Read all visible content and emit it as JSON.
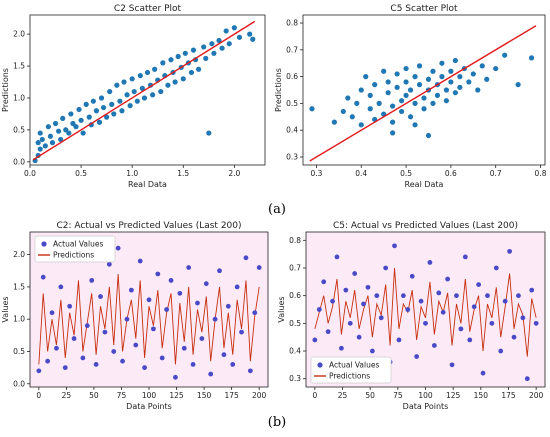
{
  "captions": {
    "a": "(a)",
    "b": "(b)"
  },
  "colors": {
    "point": "#1f77b4",
    "line": "#e41a1c",
    "actual": "#4a4ac8",
    "pred": "#c62e0e",
    "band": "#f6c6e4"
  },
  "chart_data": [
    {
      "type": "scatter",
      "title": "C2 Scatter Plot",
      "xlabel": "Real Data",
      "ylabel": "Predictions",
      "xlim": [
        0.0,
        2.3
      ],
      "ylim": [
        -0.05,
        2.3
      ],
      "xticks": [
        0.0,
        0.5,
        1.0,
        1.5,
        2.0
      ],
      "yticks": [
        0.0,
        0.5,
        1.0,
        1.5,
        2.0
      ],
      "xtick_labels": [
        "0.0",
        "0.5",
        "1.0",
        "1.5",
        "2.0"
      ],
      "ytick_labels": [
        "0.0",
        "0.5",
        "1.0",
        "1.5",
        "2.0"
      ],
      "reference_line": {
        "from": [
          0.03,
          0.03
        ],
        "to": [
          2.2,
          2.2
        ]
      },
      "points": [
        [
          0.05,
          0.02
        ],
        [
          0.08,
          0.1
        ],
        [
          0.08,
          0.3
        ],
        [
          0.1,
          0.2
        ],
        [
          0.12,
          0.35
        ],
        [
          0.1,
          0.45
        ],
        [
          0.15,
          0.25
        ],
        [
          0.18,
          0.55
        ],
        [
          0.2,
          0.4
        ],
        [
          0.22,
          0.3
        ],
        [
          0.25,
          0.6
        ],
        [
          0.28,
          0.48
        ],
        [
          0.3,
          0.35
        ],
        [
          0.32,
          0.68
        ],
        [
          0.35,
          0.5
        ],
        [
          0.38,
          0.45
        ],
        [
          0.4,
          0.75
        ],
        [
          0.42,
          0.6
        ],
        [
          0.45,
          0.55
        ],
        [
          0.48,
          0.82
        ],
        [
          0.5,
          0.65
        ],
        [
          0.52,
          0.45
        ],
        [
          0.55,
          0.9
        ],
        [
          0.58,
          0.7
        ],
        [
          0.6,
          0.58
        ],
        [
          0.62,
          0.95
        ],
        [
          0.65,
          0.8
        ],
        [
          0.68,
          0.62
        ],
        [
          0.7,
          1.0
        ],
        [
          0.72,
          0.85
        ],
        [
          0.75,
          0.7
        ],
        [
          0.78,
          1.1
        ],
        [
          0.8,
          0.9
        ],
        [
          0.82,
          0.75
        ],
        [
          0.85,
          1.2
        ],
        [
          0.88,
          0.95
        ],
        [
          0.9,
          0.8
        ],
        [
          0.92,
          1.25
        ],
        [
          0.95,
          1.05
        ],
        [
          0.98,
          0.88
        ],
        [
          1.0,
          1.3
        ],
        [
          1.02,
          1.1
        ],
        [
          1.05,
          0.95
        ],
        [
          1.08,
          1.35
        ],
        [
          1.1,
          1.15
        ],
        [
          1.12,
          1.0
        ],
        [
          1.15,
          1.4
        ],
        [
          1.18,
          1.2
        ],
        [
          1.2,
          1.05
        ],
        [
          1.22,
          1.45
        ],
        [
          1.25,
          1.28
        ],
        [
          1.28,
          1.1
        ],
        [
          1.3,
          1.55
        ],
        [
          1.32,
          1.35
        ],
        [
          1.35,
          1.2
        ],
        [
          1.38,
          1.6
        ],
        [
          1.4,
          1.4
        ],
        [
          1.42,
          1.25
        ],
        [
          1.45,
          1.65
        ],
        [
          1.48,
          1.48
        ],
        [
          1.5,
          1.3
        ],
        [
          1.52,
          1.7
        ],
        [
          1.55,
          1.55
        ],
        [
          1.58,
          1.4
        ],
        [
          1.6,
          1.75
        ],
        [
          1.62,
          1.6
        ],
        [
          1.65,
          1.45
        ],
        [
          1.7,
          1.8
        ],
        [
          1.72,
          1.62
        ],
        [
          1.75,
          0.45
        ],
        [
          1.78,
          1.85
        ],
        [
          1.8,
          1.7
        ],
        [
          1.85,
          1.9
        ],
        [
          1.88,
          1.78
        ],
        [
          1.92,
          2.05
        ],
        [
          1.95,
          1.85
        ],
        [
          2.0,
          2.1
        ],
        [
          2.05,
          1.95
        ],
        [
          2.15,
          2.0
        ],
        [
          2.18,
          1.92
        ]
      ]
    },
    {
      "type": "scatter",
      "title": "C5 Scatter Plot",
      "xlabel": "Real Data",
      "ylabel": "Predictions",
      "xlim": [
        0.27,
        0.81
      ],
      "ylim": [
        0.27,
        0.83
      ],
      "xticks": [
        0.3,
        0.4,
        0.5,
        0.6,
        0.7,
        0.8
      ],
      "yticks": [
        0.3,
        0.4,
        0.5,
        0.6,
        0.7,
        0.8
      ],
      "xtick_labels": [
        "0.3",
        "0.4",
        "0.5",
        "0.6",
        "0.7",
        "0.8"
      ],
      "ytick_labels": [
        "0.3",
        "0.4",
        "0.5",
        "0.6",
        "0.7",
        "0.8"
      ],
      "reference_line": {
        "from": [
          0.285,
          0.285
        ],
        "to": [
          0.79,
          0.79
        ]
      },
      "points": [
        [
          0.29,
          0.48
        ],
        [
          0.34,
          0.43
        ],
        [
          0.36,
          0.47
        ],
        [
          0.37,
          0.52
        ],
        [
          0.38,
          0.45
        ],
        [
          0.39,
          0.5
        ],
        [
          0.4,
          0.55
        ],
        [
          0.4,
          0.42
        ],
        [
          0.41,
          0.6
        ],
        [
          0.42,
          0.48
        ],
        [
          0.42,
          0.53
        ],
        [
          0.43,
          0.57
        ],
        [
          0.43,
          0.44
        ],
        [
          0.44,
          0.5
        ],
        [
          0.45,
          0.62
        ],
        [
          0.45,
          0.46
        ],
        [
          0.46,
          0.54
        ],
        [
          0.46,
          0.58
        ],
        [
          0.47,
          0.49
        ],
        [
          0.47,
          0.43
        ],
        [
          0.48,
          0.56
        ],
        [
          0.48,
          0.61
        ],
        [
          0.49,
          0.51
        ],
        [
          0.49,
          0.47
        ],
        [
          0.5,
          0.58
        ],
        [
          0.5,
          0.53
        ],
        [
          0.5,
          0.63
        ],
        [
          0.51,
          0.45
        ],
        [
          0.51,
          0.55
        ],
        [
          0.52,
          0.6
        ],
        [
          0.52,
          0.5
        ],
        [
          0.53,
          0.57
        ],
        [
          0.53,
          0.64
        ],
        [
          0.54,
          0.52
        ],
        [
          0.54,
          0.48
        ],
        [
          0.55,
          0.59
        ],
        [
          0.55,
          0.55
        ],
        [
          0.56,
          0.62
        ],
        [
          0.56,
          0.5
        ],
        [
          0.57,
          0.57
        ],
        [
          0.57,
          0.53
        ],
        [
          0.58,
          0.6
        ],
        [
          0.58,
          0.65
        ],
        [
          0.59,
          0.55
        ],
        [
          0.59,
          0.51
        ],
        [
          0.6,
          0.62
        ],
        [
          0.6,
          0.58
        ],
        [
          0.61,
          0.54
        ],
        [
          0.61,
          0.66
        ],
        [
          0.62,
          0.6
        ],
        [
          0.62,
          0.56
        ],
        [
          0.63,
          0.63
        ],
        [
          0.64,
          0.58
        ],
        [
          0.65,
          0.61
        ],
        [
          0.66,
          0.55
        ],
        [
          0.67,
          0.64
        ],
        [
          0.68,
          0.59
        ],
        [
          0.7,
          0.63
        ],
        [
          0.72,
          0.68
        ],
        [
          0.75,
          0.57
        ],
        [
          0.78,
          0.67
        ],
        [
          0.47,
          0.39
        ],
        [
          0.55,
          0.38
        ],
        [
          0.52,
          0.42
        ]
      ]
    },
    {
      "type": "line",
      "title": "C2: Actual vs Predicted Values (Last 200)",
      "xlabel": "Data Points",
      "ylabel": "Values",
      "xlim": [
        -8,
        208
      ],
      "ylim": [
        -0.05,
        2.35
      ],
      "xticks": [
        0,
        25,
        50,
        75,
        100,
        125,
        150,
        175,
        200
      ],
      "yticks": [
        0.0,
        0.5,
        1.0,
        1.5,
        2.0
      ],
      "xtick_labels": [
        "0",
        "25",
        "50",
        "75",
        "100",
        "125",
        "150",
        "175",
        "200"
      ],
      "ytick_labels": [
        "0.0",
        "0.5",
        "1.0",
        "1.5",
        "2.0"
      ],
      "legend": {
        "position": "top-left",
        "entries": [
          "Actual Values",
          "Predictions"
        ]
      },
      "series": [
        {
          "name": "Actual Values",
          "x": [
            0,
            4,
            8,
            12,
            16,
            20,
            24,
            28,
            32,
            36,
            40,
            44,
            48,
            52,
            56,
            60,
            64,
            68,
            72,
            76,
            80,
            84,
            88,
            92,
            96,
            100,
            104,
            108,
            112,
            116,
            120,
            124,
            128,
            132,
            136,
            140,
            144,
            148,
            152,
            156,
            160,
            164,
            168,
            172,
            176,
            180,
            184,
            188,
            192,
            196,
            200
          ],
          "values": [
            0.2,
            1.65,
            0.35,
            1.1,
            0.55,
            1.5,
            0.25,
            1.2,
            0.7,
            1.95,
            0.4,
            0.9,
            1.6,
            0.3,
            1.35,
            0.8,
            1.85,
            0.5,
            2.1,
            0.35,
            1.0,
            1.45,
            0.6,
            1.9,
            0.25,
            1.3,
            0.85,
            1.7,
            0.4,
            1.15,
            1.6,
            0.1,
            1.4,
            0.55,
            1.8,
            0.3,
            1.25,
            0.7,
            1.55,
            0.15,
            1.0,
            1.75,
            0.45,
            1.2,
            0.3,
            1.5,
            0.8,
            1.95,
            0.2,
            1.1,
            1.8
          ]
        },
        {
          "name": "Predictions",
          "x": [
            0,
            4,
            8,
            12,
            16,
            20,
            24,
            28,
            32,
            36,
            40,
            44,
            48,
            52,
            56,
            60,
            64,
            68,
            72,
            76,
            80,
            84,
            88,
            92,
            96,
            100,
            104,
            108,
            112,
            116,
            120,
            124,
            128,
            132,
            136,
            140,
            144,
            148,
            152,
            156,
            160,
            164,
            168,
            172,
            176,
            180,
            184,
            188,
            192,
            196,
            200
          ],
          "values": [
            0.3,
            1.4,
            0.5,
            1.0,
            0.6,
            1.3,
            0.4,
            1.1,
            0.75,
            1.6,
            0.5,
            0.95,
            1.4,
            0.45,
            1.2,
            0.85,
            1.5,
            0.6,
            1.7,
            0.5,
            1.0,
            1.3,
            0.7,
            1.6,
            0.4,
            1.2,
            0.9,
            1.45,
            0.55,
            1.1,
            1.4,
            0.3,
            1.25,
            0.65,
            1.5,
            0.45,
            1.15,
            0.8,
            1.35,
            0.35,
            1.0,
            1.5,
            0.55,
            1.1,
            0.45,
            1.3,
            0.85,
            1.6,
            0.35,
            1.05,
            1.5
          ]
        }
      ]
    },
    {
      "type": "line",
      "title": "C5: Actual vs Predicted Values (Last 200)",
      "xlabel": "Data Points",
      "ylabel": "Values",
      "xlim": [
        -8,
        208
      ],
      "ylim": [
        0.27,
        0.83
      ],
      "xticks": [
        0,
        25,
        50,
        75,
        100,
        125,
        150,
        175,
        200
      ],
      "yticks": [
        0.3,
        0.4,
        0.5,
        0.6,
        0.7,
        0.8
      ],
      "xtick_labels": [
        "0",
        "25",
        "50",
        "75",
        "100",
        "125",
        "150",
        "175",
        "200"
      ],
      "ytick_labels": [
        "0.3",
        "0.4",
        "0.5",
        "0.6",
        "0.7",
        "0.8"
      ],
      "legend": {
        "position": "bottom-left",
        "entries": [
          "Actual Values",
          "Predictions"
        ]
      },
      "series": [
        {
          "name": "Actual Values",
          "x": [
            0,
            4,
            8,
            12,
            16,
            20,
            24,
            28,
            32,
            36,
            40,
            44,
            48,
            52,
            56,
            60,
            64,
            68,
            72,
            76,
            80,
            84,
            88,
            92,
            96,
            100,
            104,
            108,
            112,
            116,
            120,
            124,
            128,
            132,
            136,
            140,
            144,
            148,
            152,
            156,
            160,
            164,
            168,
            172,
            176,
            180,
            184,
            188,
            192,
            196,
            200
          ],
          "values": [
            0.44,
            0.55,
            0.65,
            0.47,
            0.58,
            0.74,
            0.41,
            0.62,
            0.5,
            0.68,
            0.45,
            0.57,
            0.63,
            0.4,
            0.6,
            0.52,
            0.7,
            0.36,
            0.78,
            0.44,
            0.6,
            0.55,
            0.67,
            0.38,
            0.58,
            0.5,
            0.72,
            0.42,
            0.61,
            0.54,
            0.66,
            0.35,
            0.6,
            0.48,
            0.74,
            0.44,
            0.56,
            0.64,
            0.32,
            0.6,
            0.5,
            0.7,
            0.4,
            0.58,
            0.76,
            0.45,
            0.6,
            0.52,
            0.3,
            0.62,
            0.5
          ]
        },
        {
          "name": "Predictions",
          "x": [
            0,
            4,
            8,
            12,
            16,
            20,
            24,
            28,
            32,
            36,
            40,
            44,
            48,
            52,
            56,
            60,
            64,
            68,
            72,
            76,
            80,
            84,
            88,
            92,
            96,
            100,
            104,
            108,
            112,
            116,
            120,
            124,
            128,
            132,
            136,
            140,
            144,
            148,
            152,
            156,
            160,
            164,
            168,
            172,
            176,
            180,
            184,
            188,
            192,
            196,
            200
          ],
          "values": [
            0.48,
            0.54,
            0.6,
            0.5,
            0.56,
            0.66,
            0.46,
            0.58,
            0.52,
            0.62,
            0.48,
            0.55,
            0.6,
            0.45,
            0.57,
            0.53,
            0.64,
            0.42,
            0.7,
            0.48,
            0.57,
            0.54,
            0.62,
            0.44,
            0.56,
            0.52,
            0.65,
            0.46,
            0.58,
            0.54,
            0.61,
            0.42,
            0.57,
            0.5,
            0.66,
            0.47,
            0.55,
            0.6,
            0.4,
            0.57,
            0.52,
            0.63,
            0.45,
            0.56,
            0.68,
            0.48,
            0.57,
            0.53,
            0.38,
            0.59,
            0.52
          ]
        }
      ]
    }
  ]
}
